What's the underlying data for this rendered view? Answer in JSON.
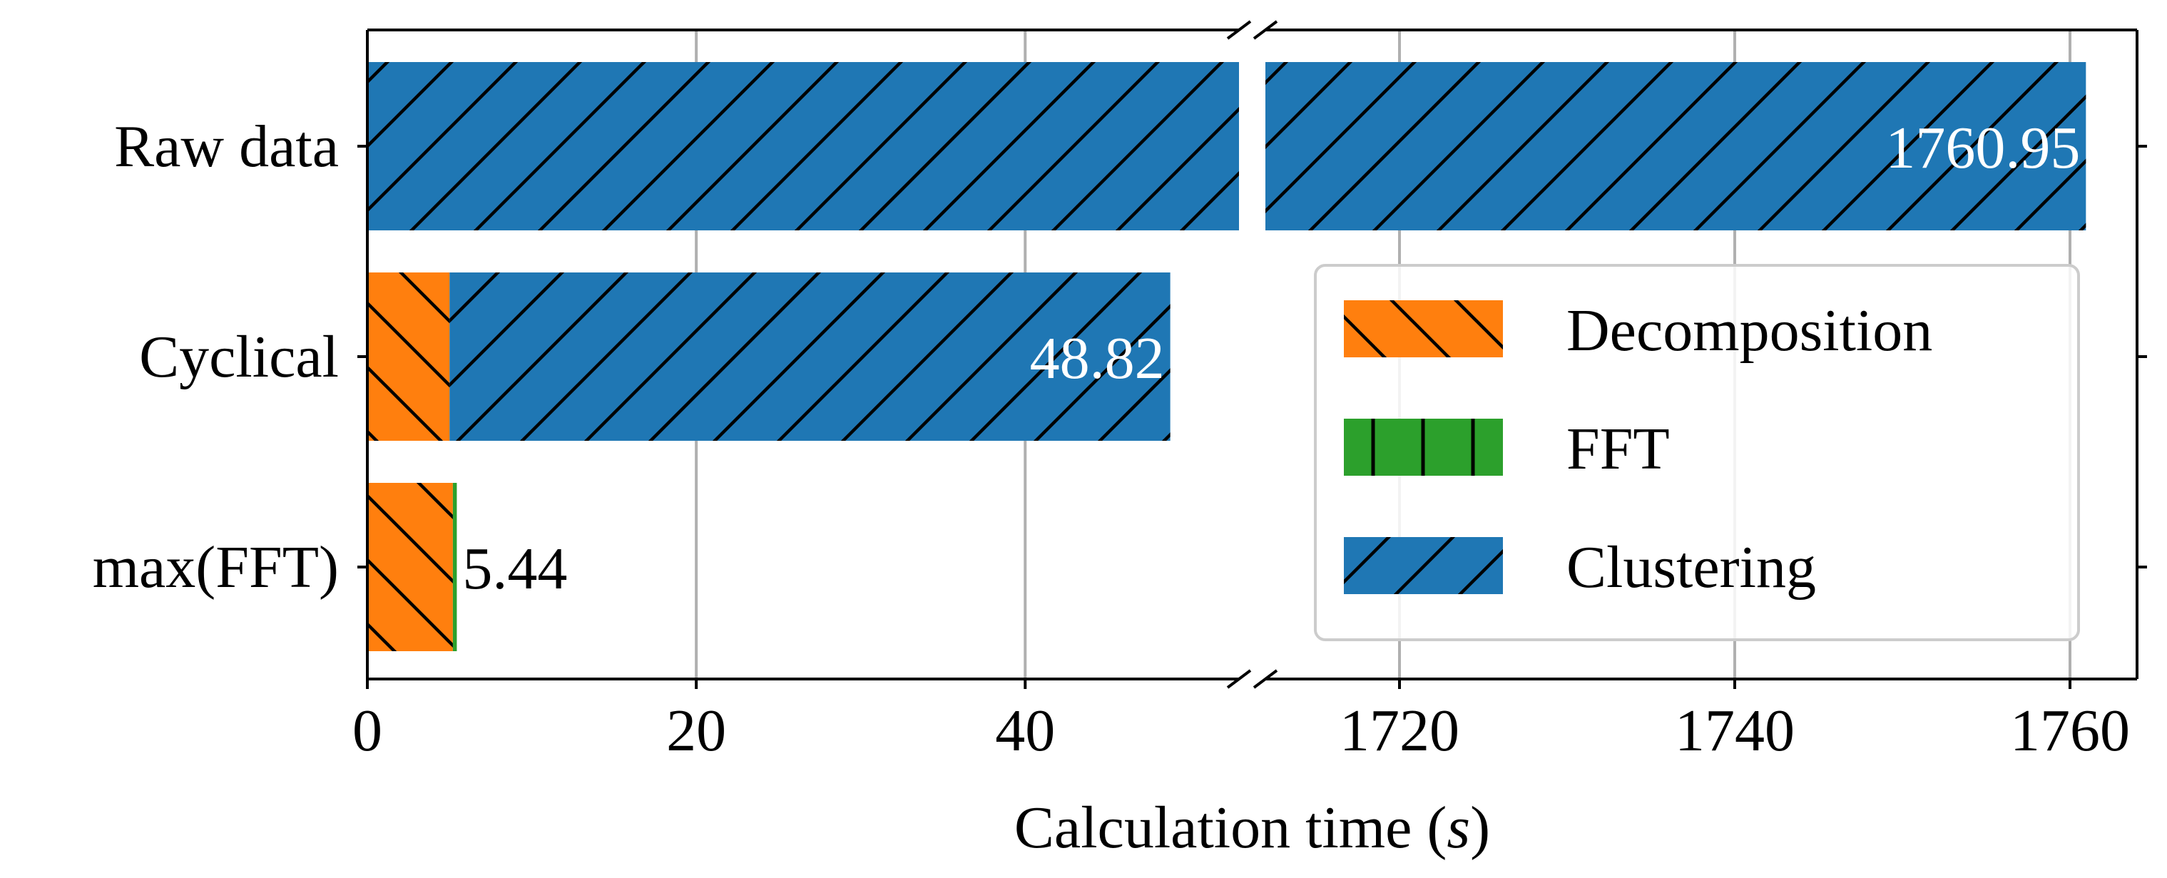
{
  "chart_data": {
    "type": "bar",
    "orientation": "horizontal",
    "stacked": true,
    "broken_x_axis": true,
    "title": "",
    "xlabel": "Calculation time (",
    "xlabel_var": "s",
    "xlabel_end": ")",
    "ylabel": "",
    "categories": [
      "Raw data",
      "Cyclical",
      "max(FFT)"
    ],
    "series": [
      {
        "name": "Decomposition",
        "color": "#ff7f0e",
        "hatch": "backslash",
        "values": [
          0,
          5.0,
          5.2
        ]
      },
      {
        "name": "FFT",
        "color": "#2ca02c",
        "hatch": "vertical",
        "values": [
          0,
          0,
          0.24
        ]
      },
      {
        "name": "Clustering",
        "color": "#1f77b4",
        "hatch": "slash",
        "values": [
          1760.95,
          43.82,
          0
        ]
      }
    ],
    "totals": [
      "1760.95",
      "48.82",
      "5.44"
    ],
    "segments": [
      {
        "xlim": [
          0,
          53
        ],
        "xticks": [
          0,
          20,
          40
        ],
        "xtick_labels": [
          "0",
          "20",
          "40"
        ]
      },
      {
        "xlim": [
          1712,
          1764
        ],
        "xticks": [
          1720,
          1740,
          1760
        ],
        "xtick_labels": [
          "1720",
          "1740",
          "1760"
        ]
      }
    ],
    "grid": "x",
    "legend": {
      "position": "right",
      "entries": [
        "Decomposition",
        "FFT",
        "Clustering"
      ]
    }
  }
}
